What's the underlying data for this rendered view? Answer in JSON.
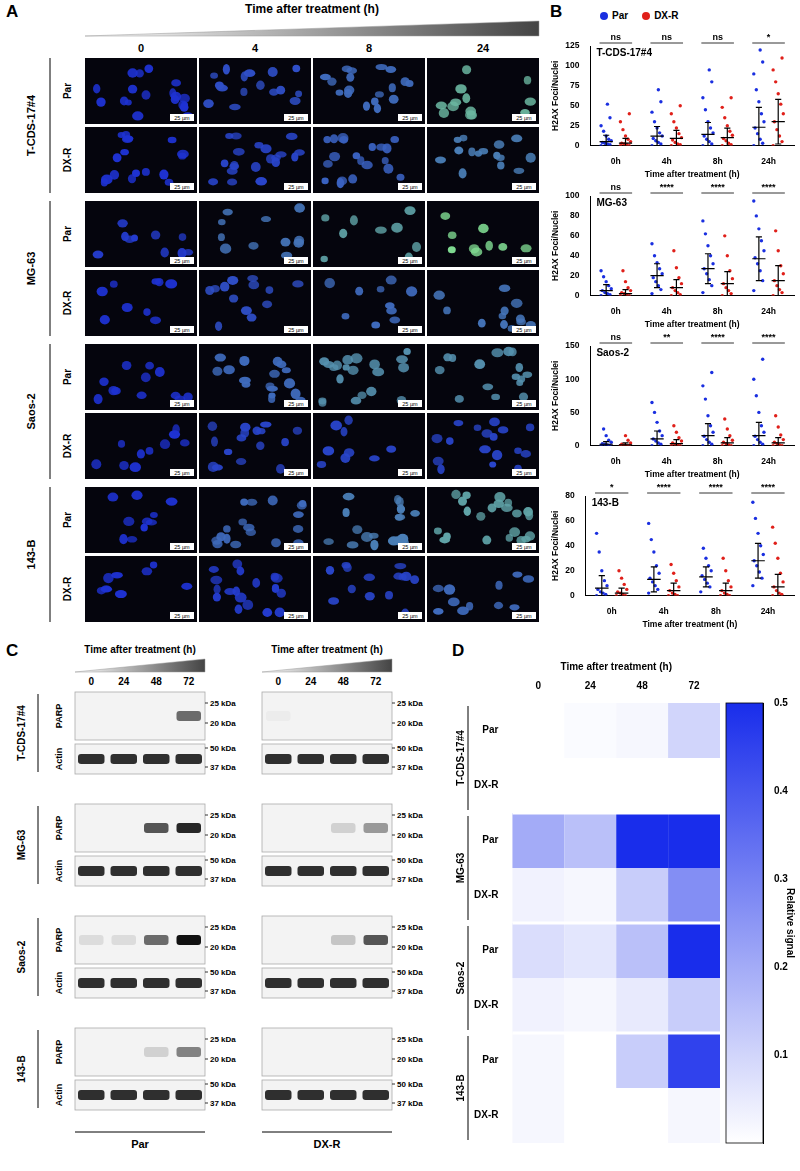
{
  "panel_labels": [
    "A",
    "B",
    "C",
    "D"
  ],
  "panel_A": {
    "title": "Time after treatment (h)",
    "times": [
      "0",
      "4",
      "8",
      "24"
    ],
    "cell_lines": [
      "T-CDS-17#4",
      "MG-63",
      "Saos-2",
      "143-B"
    ],
    "conditions": [
      "Par",
      "DX-R"
    ],
    "scale_bar": "25 µm",
    "signal": [
      [
        0,
        0.15,
        0.3,
        0.7
      ],
      [
        0,
        0.1,
        0.25,
        0.4
      ],
      [
        0.05,
        0.35,
        0.6,
        0.9
      ],
      [
        0,
        0.15,
        0.3,
        0.35
      ],
      [
        0,
        0.3,
        0.5,
        0.5
      ],
      [
        0,
        0.1,
        0.1,
        0.1
      ],
      [
        0,
        0.3,
        0.4,
        0.6
      ],
      [
        0,
        0.05,
        0.1,
        0.3
      ]
    ]
  },
  "chart_data": [
    {
      "type": "strip",
      "title": "T-CDS-17#4",
      "x_label": "Time after treatment (h)",
      "y_label": "H2AX Foci/Nuclei",
      "categories": [
        "0h",
        "4h",
        "8h",
        "24h"
      ],
      "ylim": [
        0,
        125
      ],
      "yticks": [
        0,
        25,
        50,
        75,
        100,
        125
      ],
      "annotations": [
        "ns",
        "ns",
        "ns",
        "*"
      ],
      "legend": "top",
      "series": [
        {
          "name": "Par",
          "color": "#1a2fe0",
          "values": [
            [
              0,
              1,
              2,
              3,
              4,
              6,
              8,
              12,
              18,
              25,
              35,
              52
            ],
            [
              0,
              2,
              4,
              6,
              9,
              12,
              16,
              22,
              30,
              42,
              55,
              70
            ],
            [
              0,
              2,
              5,
              8,
              12,
              16,
              22,
              30,
              45,
              60,
              80,
              95
            ],
            [
              0,
              3,
              8,
              15,
              22,
              30,
              40,
              55,
              70,
              90,
              105,
              120
            ]
          ],
          "mean": [
            5,
            12,
            14,
            23
          ],
          "sd": [
            8,
            12,
            15,
            25
          ]
        },
        {
          "name": "DX-R",
          "color": "#e0201a",
          "values": [
            [
              0,
              0,
              1,
              2,
              3,
              5,
              8,
              12,
              20,
              30,
              40
            ],
            [
              0,
              1,
              2,
              4,
              7,
              10,
              15,
              22,
              30,
              40,
              50
            ],
            [
              0,
              1,
              3,
              6,
              9,
              13,
              18,
              25,
              35,
              48,
              60
            ],
            [
              0,
              5,
              12,
              20,
              30,
              40,
              52,
              65,
              80,
              95,
              110
            ]
          ],
          "mean": [
            3,
            9,
            10,
            30
          ],
          "sd": [
            6,
            10,
            12,
            28
          ]
        }
      ]
    },
    {
      "type": "strip",
      "title": "MG-63",
      "x_label": "Time after treatment (h)",
      "y_label": "H2AX Foci/Nuclei",
      "categories": [
        "0h",
        "4h",
        "8h",
        "24h"
      ],
      "ylim": [
        0,
        100
      ],
      "yticks": [
        0,
        20,
        40,
        60,
        80,
        100
      ],
      "annotations": [
        "ns",
        "****",
        "****",
        "****"
      ],
      "series": [
        {
          "name": "Par",
          "color": "#1a2fe0",
          "values": [
            [
              0,
              1,
              2,
              3,
              5,
              7,
              10,
              14,
              19,
              25
            ],
            [
              2,
              6,
              10,
              14,
              18,
              22,
              27,
              33,
              40,
              52
            ],
            [
              3,
              10,
              16,
              22,
              27,
              32,
              40,
              50,
              62,
              75
            ],
            [
              5,
              15,
              25,
              32,
              38,
              45,
              55,
              67,
              80,
              95
            ]
          ],
          "mean": [
            5,
            20,
            27,
            37
          ],
          "sd": [
            6,
            12,
            15,
            22
          ]
        },
        {
          "name": "DX-R",
          "color": "#e0201a",
          "values": [
            [
              0,
              0,
              1,
              2,
              3,
              5,
              8,
              14,
              25
            ],
            [
              0,
              1,
              3,
              5,
              8,
              12,
              18,
              28,
              45
            ],
            [
              0,
              2,
              5,
              8,
              12,
              17,
              25,
              40,
              60
            ],
            [
              0,
              3,
              6,
              10,
              15,
              22,
              30,
              45,
              65
            ]
          ],
          "mean": [
            2,
            8,
            12,
            15
          ],
          "sd": [
            4,
            8,
            12,
            15
          ]
        }
      ]
    },
    {
      "type": "strip",
      "title": "Saos-2",
      "x_label": "Time after treatment (h)",
      "y_label": "H2AX Foci/Nuclei",
      "categories": [
        "0h",
        "4h",
        "8h",
        "24h"
      ],
      "ylim": [
        0,
        150
      ],
      "yticks": [
        0,
        50,
        100,
        150
      ],
      "annotations": [
        "ns",
        "**",
        "****",
        "****"
      ],
      "series": [
        {
          "name": "Par",
          "color": "#1a2fe0",
          "values": [
            [
              0,
              0,
              1,
              2,
              3,
              5,
              8,
              15,
              25
            ],
            [
              0,
              2,
              4,
              7,
              10,
              15,
              22,
              35,
              50,
              65
            ],
            [
              0,
              2,
              5,
              9,
              14,
              20,
              30,
              45,
              70,
              90,
              110
            ],
            [
              0,
              2,
              5,
              9,
              14,
              20,
              30,
              50,
              75,
              100,
              130
            ]
          ],
          "mean": [
            2,
            10,
            15,
            15
          ],
          "sd": [
            4,
            12,
            18,
            20
          ]
        },
        {
          "name": "DX-R",
          "color": "#e0201a",
          "values": [
            [
              0,
              0,
              0,
              1,
              2,
              4,
              8,
              15
            ],
            [
              0,
              0,
              1,
              2,
              4,
              7,
              12,
              20,
              30
            ],
            [
              0,
              0,
              1,
              3,
              5,
              8,
              15,
              25,
              40
            ],
            [
              0,
              0,
              1,
              3,
              5,
              9,
              16,
              28,
              45
            ]
          ],
          "mean": [
            1,
            3,
            4,
            4
          ],
          "sd": [
            3,
            6,
            8,
            8
          ]
        }
      ]
    },
    {
      "type": "strip",
      "title": "143-B",
      "x_label": "Time after treatment (h)",
      "y_label": "H2AX Foci/Nuclei",
      "categories": [
        "0h",
        "4h",
        "8h",
        "24h"
      ],
      "ylim": [
        0,
        80
      ],
      "yticks": [
        0,
        20,
        40,
        60,
        80
      ],
      "annotations": [
        "*",
        "****",
        "****",
        "****"
      ],
      "series": [
        {
          "name": "Par",
          "color": "#1a2fe0",
          "values": [
            [
              0,
              1,
              2,
              3,
              5,
              8,
              12,
              20,
              35,
              50
            ],
            [
              2,
              5,
              8,
              11,
              14,
              18,
              24,
              35,
              45,
              58
            ],
            [
              3,
              7,
              10,
              13,
              16,
              20,
              24,
              30,
              38
            ],
            [
              8,
              14,
              19,
              24,
              28,
              33,
              40,
              50,
              62,
              75
            ]
          ],
          "mean": [
            6,
            13,
            15,
            28
          ],
          "sd": [
            10,
            10,
            8,
            14
          ]
        },
        {
          "name": "DX-R",
          "color": "#e0201a",
          "values": [
            [
              0,
              0,
              1,
              2,
              3,
              5,
              9,
              14,
              20
            ],
            [
              0,
              0,
              1,
              2,
              4,
              7,
              12,
              18,
              25
            ],
            [
              0,
              0,
              1,
              2,
              4,
              7,
              12,
              20,
              30
            ],
            [
              0,
              1,
              2,
              4,
              7,
              11,
              18,
              30,
              42,
              55
            ]
          ],
          "mean": [
            2,
            4,
            4,
            7
          ],
          "sd": [
            4,
            6,
            6,
            10
          ]
        }
      ]
    },
    {
      "type": "heatmap",
      "x_label": "Time after treatment (h)",
      "columns": [
        "0",
        "24",
        "48",
        "72"
      ],
      "rows": [
        {
          "group": "T-CDS-17#4",
          "label": "Par",
          "values": [
            0,
            0.01,
            0.02,
            0.1
          ]
        },
        {
          "group": "T-CDS-17#4",
          "label": "DX-R",
          "values": [
            0,
            0,
            0,
            0
          ]
        },
        {
          "group": "MG-63",
          "label": "Par",
          "values": [
            0.2,
            0.15,
            0.5,
            0.5
          ]
        },
        {
          "group": "MG-63",
          "label": "DX-R",
          "values": [
            0.03,
            0.02,
            0.12,
            0.27
          ]
        },
        {
          "group": "Saos-2",
          "label": "Par",
          "values": [
            0.08,
            0.06,
            0.15,
            0.5
          ]
        },
        {
          "group": "Saos-2",
          "label": "DX-R",
          "values": [
            0.03,
            0.02,
            0.05,
            0.12
          ]
        },
        {
          "group": "143-B",
          "label": "Par",
          "values": [
            0.02,
            0,
            0.12,
            0.45
          ]
        },
        {
          "group": "143-B",
          "label": "DX-R",
          "values": [
            0.02,
            0,
            0,
            0.02
          ]
        }
      ],
      "colorbar": {
        "label": "Relative signal",
        "range": [
          0,
          0.5
        ],
        "ticks": [
          0.1,
          0.2,
          0.3,
          0.4,
          0.5
        ]
      }
    }
  ],
  "panel_C": {
    "title": "Time after treatment (h)",
    "times": [
      "0",
      "24",
      "48",
      "72"
    ],
    "groups": [
      "Par",
      "DX-R"
    ],
    "cell_lines": [
      "T-CDS-17#4",
      "MG-63",
      "Saos-2",
      "143-B"
    ],
    "rows": [
      "PARP",
      "Actin"
    ],
    "markers": {
      "PARP": [
        "25 kDa",
        "20 kDa"
      ],
      "Actin": [
        "50 kDa",
        "37 kDa"
      ]
    },
    "parp_band": [
      [
        [
          0,
          0,
          0,
          0.6
        ],
        [
          0,
          0,
          0.7,
          0.9
        ],
        [
          0.1,
          0.1,
          0.6,
          1
        ],
        [
          0,
          0,
          0.15,
          0.5
        ]
      ],
      [
        [
          0.03,
          0,
          0,
          0
        ],
        [
          0,
          0,
          0.15,
          0.4
        ],
        [
          0,
          0,
          0.2,
          0.7
        ],
        [
          0,
          0,
          0,
          0
        ]
      ]
    ]
  }
}
